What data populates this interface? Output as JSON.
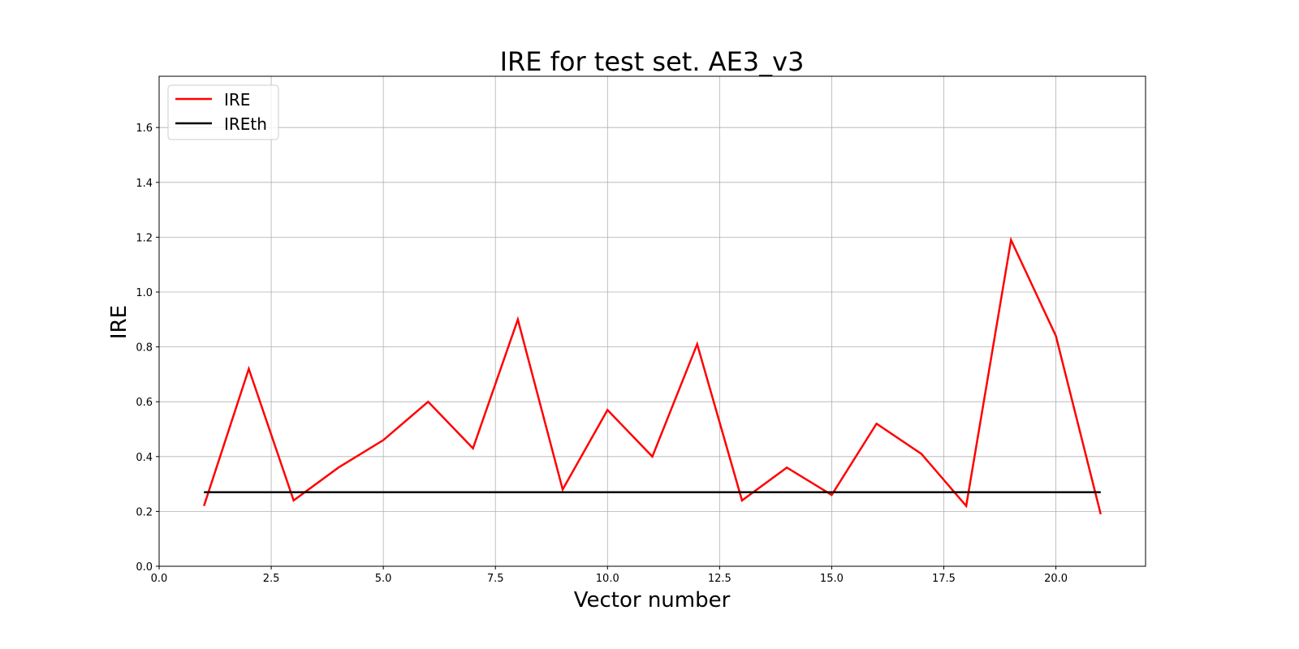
{
  "chart_data": {
    "type": "line",
    "title": "IRE for test set. AE3_v3",
    "xlabel": "Vector number",
    "ylabel": "IRE",
    "xlim": [
      0,
      22
    ],
    "ylim": [
      0,
      1.787
    ],
    "xticks": [
      "0.0",
      "2.5",
      "5.0",
      "7.5",
      "10.0",
      "12.5",
      "15.0",
      "17.5",
      "20.0"
    ],
    "yticks": [
      "0.0",
      "0.2",
      "0.4",
      "0.6",
      "0.8",
      "1.0",
      "1.2",
      "1.4",
      "1.6"
    ],
    "grid": true,
    "legend_position": "top-left",
    "x": [
      1,
      2,
      3,
      4,
      5,
      6,
      7,
      8,
      9,
      10,
      11,
      12,
      13,
      14,
      15,
      16,
      17,
      18,
      19,
      20,
      21
    ],
    "series": [
      {
        "name": "IRE",
        "color": "#ff0000",
        "values": [
          0.22,
          0.72,
          0.24,
          0.36,
          0.46,
          0.6,
          0.43,
          0.9,
          0.28,
          0.57,
          0.4,
          0.81,
          0.24,
          0.36,
          0.26,
          0.52,
          0.41,
          0.22,
          1.19,
          0.84,
          0.19
        ]
      },
      {
        "name": "IREth",
        "color": "#000000",
        "values": [
          0.27,
          0.27,
          0.27,
          0.27,
          0.27,
          0.27,
          0.27,
          0.27,
          0.27,
          0.27,
          0.27,
          0.27,
          0.27,
          0.27,
          0.27,
          0.27,
          0.27,
          0.27,
          0.27,
          0.27,
          0.27
        ]
      }
    ]
  }
}
